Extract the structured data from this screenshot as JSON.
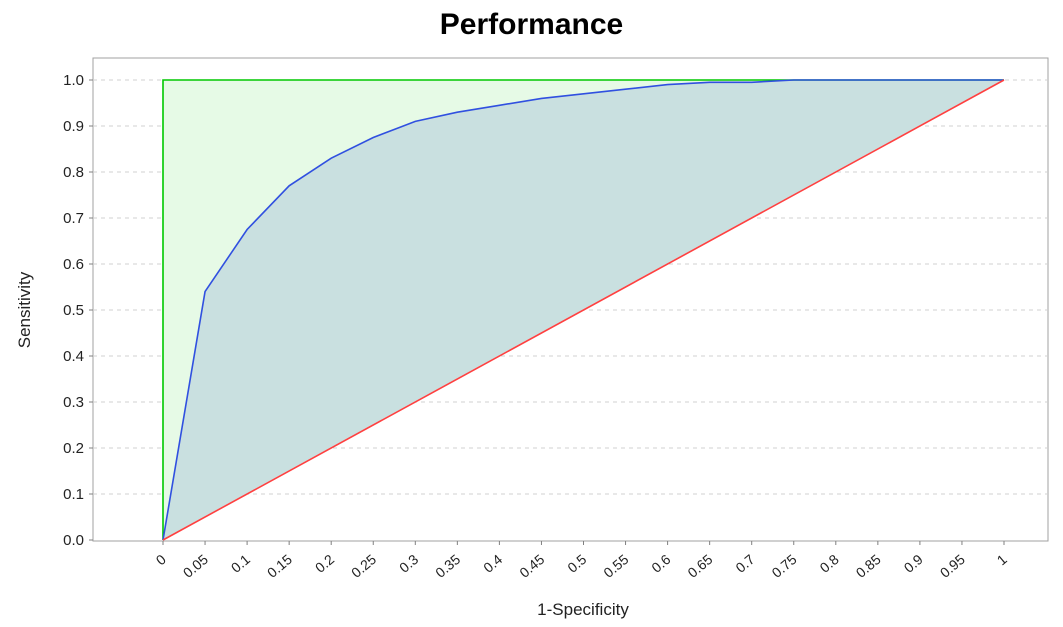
{
  "chart_data": {
    "type": "area",
    "title": "Performance",
    "xlabel": "1-Specificity",
    "ylabel": "Sensitivity",
    "xlim": [
      0,
      1
    ],
    "ylim": [
      0,
      1
    ],
    "x_ticks": [
      "0",
      "0.05",
      "0.1",
      "0.15",
      "0.2",
      "0.25",
      "0.3",
      "0.35",
      "0.4",
      "0.45",
      "0.5",
      "0.55",
      "0.6",
      "0.65",
      "0.7",
      "0.75",
      "0.8",
      "0.85",
      "0.9",
      "0.95",
      "1"
    ],
    "y_ticks": [
      "0.0",
      "0.1",
      "0.2",
      "0.3",
      "0.4",
      "0.5",
      "0.6",
      "0.7",
      "0.8",
      "0.9",
      "1.0"
    ],
    "grid": "horizontal dashed",
    "series": [
      {
        "color": "#00c800",
        "fill": "#e6fae6",
        "x": [
          0,
          0,
          1
        ],
        "y": [
          0,
          1,
          1
        ]
      },
      {
        "color": "#3050e0",
        "fill": "#c9e0e0",
        "x": [
          0,
          0.05,
          0.1,
          0.15,
          0.2,
          0.25,
          0.3,
          0.35,
          0.4,
          0.45,
          0.5,
          0.55,
          0.6,
          0.65,
          0.7,
          0.75,
          0.8,
          0.85,
          0.9,
          0.95,
          1
        ],
        "y": [
          0,
          0.54,
          0.675,
          0.77,
          0.83,
          0.875,
          0.91,
          0.93,
          0.945,
          0.96,
          0.97,
          0.98,
          0.99,
          0.995,
          0.995,
          1.0,
          1.0,
          1.0,
          1.0,
          1.0,
          1.0
        ]
      },
      {
        "color": "#ff4040",
        "x": [
          0,
          1
        ],
        "y": [
          0,
          1
        ]
      }
    ]
  }
}
